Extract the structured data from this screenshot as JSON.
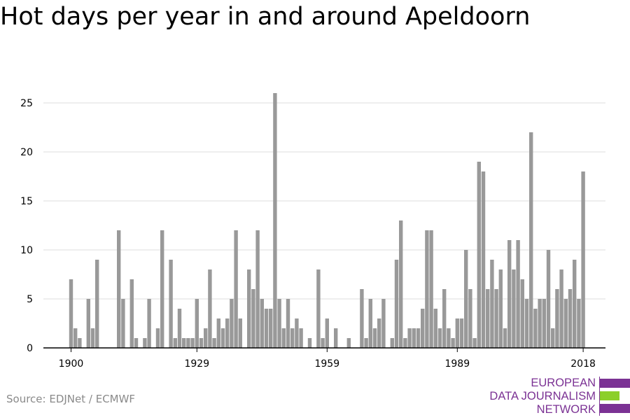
{
  "title": "Hot days per year in and around Apeldoorn",
  "source": "Source: EDJNet / ECMWF",
  "logo": {
    "lines": [
      "EUROPEAN",
      "DATA JOURNALISM",
      "NETWORK"
    ],
    "colors": {
      "purple": "#7b3294",
      "green": "#8ccf2a"
    }
  },
  "chart_data": {
    "type": "bar",
    "title": "Hot days per year in and around Apeldoorn",
    "xlabel": "",
    "ylabel": "",
    "bar_color": "#999999",
    "grid": true,
    "ylim": [
      0,
      27
    ],
    "xlim": [
      1900,
      2018
    ],
    "y_ticks": [
      0,
      5,
      10,
      15,
      20,
      25
    ],
    "x_ticks": [
      1900,
      1929,
      1959,
      1989,
      2018
    ],
    "categories": [
      1900,
      1901,
      1902,
      1903,
      1904,
      1905,
      1906,
      1907,
      1908,
      1909,
      1910,
      1911,
      1912,
      1913,
      1914,
      1915,
      1916,
      1917,
      1918,
      1919,
      1920,
      1921,
      1922,
      1923,
      1924,
      1925,
      1926,
      1927,
      1928,
      1929,
      1930,
      1931,
      1932,
      1933,
      1934,
      1935,
      1936,
      1937,
      1938,
      1939,
      1940,
      1941,
      1942,
      1943,
      1944,
      1945,
      1946,
      1947,
      1948,
      1949,
      1950,
      1951,
      1952,
      1953,
      1954,
      1955,
      1956,
      1957,
      1958,
      1959,
      1960,
      1961,
      1962,
      1963,
      1964,
      1965,
      1966,
      1967,
      1968,
      1969,
      1970,
      1971,
      1972,
      1973,
      1974,
      1975,
      1976,
      1977,
      1978,
      1979,
      1980,
      1981,
      1982,
      1983,
      1984,
      1985,
      1986,
      1987,
      1988,
      1989,
      1990,
      1991,
      1992,
      1993,
      1994,
      1995,
      1996,
      1997,
      1998,
      1999,
      2000,
      2001,
      2002,
      2003,
      2004,
      2005,
      2006,
      2007,
      2008,
      2009,
      2010,
      2011,
      2012,
      2013,
      2014,
      2015,
      2016,
      2017,
      2018
    ],
    "values": [
      7,
      2,
      1,
      0,
      5,
      2,
      9,
      0,
      0,
      0,
      0,
      12,
      5,
      0,
      7,
      1,
      0,
      1,
      5,
      0,
      2,
      12,
      0,
      9,
      1,
      4,
      1,
      1,
      1,
      5,
      1,
      2,
      8,
      1,
      3,
      2,
      3,
      5,
      12,
      3,
      0,
      8,
      6,
      12,
      5,
      4,
      4,
      26,
      5,
      2,
      5,
      2,
      3,
      2,
      0,
      1,
      0,
      8,
      1,
      3,
      0,
      2,
      0,
      0,
      1,
      0,
      0,
      6,
      1,
      5,
      2,
      3,
      5,
      0,
      1,
      9,
      13,
      1,
      2,
      2,
      2,
      4,
      12,
      12,
      4,
      2,
      6,
      2,
      1,
      3,
      3,
      10,
      6,
      1,
      19,
      18,
      6,
      9,
      6,
      8,
      2,
      11,
      8,
      11,
      7,
      5,
      22,
      4,
      5,
      5,
      10,
      2,
      6,
      8,
      5,
      6,
      9,
      5,
      18
    ]
  }
}
